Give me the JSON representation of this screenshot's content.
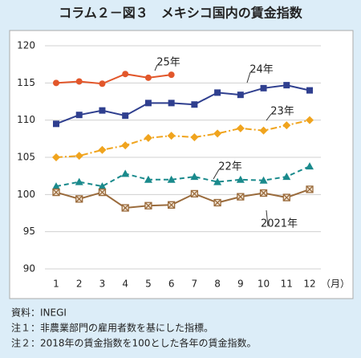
{
  "chart_data": {
    "type": "line",
    "title": "コラム２－図３　メキシコ国内の賃金指数",
    "categories": [
      "1",
      "2",
      "3",
      "4",
      "5",
      "6",
      "7",
      "8",
      "9",
      "10",
      "11",
      "12"
    ],
    "x_unit_label": "（月）",
    "ylim": [
      90,
      120
    ],
    "yticks": [
      90,
      95,
      100,
      105,
      110,
      115,
      120
    ],
    "grid": true,
    "series": [
      {
        "name": "25年",
        "color": "#e2572b",
        "marker": "circle",
        "dash": "none",
        "values": [
          115.0,
          115.2,
          114.9,
          116.2,
          115.7,
          116.1,
          null,
          null,
          null,
          null,
          null,
          null
        ]
      },
      {
        "name": "24年",
        "color": "#2f3f8f",
        "marker": "square",
        "dash": "none",
        "values": [
          109.5,
          110.7,
          111.3,
          110.6,
          112.3,
          112.3,
          112.1,
          113.7,
          113.4,
          114.3,
          114.7,
          114.0
        ]
      },
      {
        "name": "23年",
        "color": "#f0a41e",
        "marker": "diamond",
        "dash": "8 3 2 3",
        "values": [
          105.0,
          105.2,
          106.0,
          106.6,
          107.6,
          107.9,
          107.7,
          108.2,
          108.9,
          108.6,
          109.3,
          110.0
        ]
      },
      {
        "name": "22年",
        "color": "#1a8a8c",
        "marker": "triangle",
        "dash": "6 4",
        "values": [
          101.1,
          101.7,
          101.1,
          102.8,
          102.0,
          102.0,
          102.4,
          101.7,
          102.0,
          101.9,
          102.4,
          103.8
        ]
      },
      {
        "name": "2021年",
        "color": "#9a6b3c",
        "marker": "xsquare",
        "dash": "none",
        "values": [
          100.3,
          99.4,
          100.3,
          98.2,
          98.5,
          98.6,
          100.1,
          98.9,
          99.7,
          100.2,
          99.6,
          100.7
        ]
      }
    ],
    "notes": [
      "資料：INEGI",
      "注１：非農業部門の雇用者数を基にした指標。",
      "注２：2018年の賃金指数を100とした各年の賃金指数。"
    ]
  }
}
